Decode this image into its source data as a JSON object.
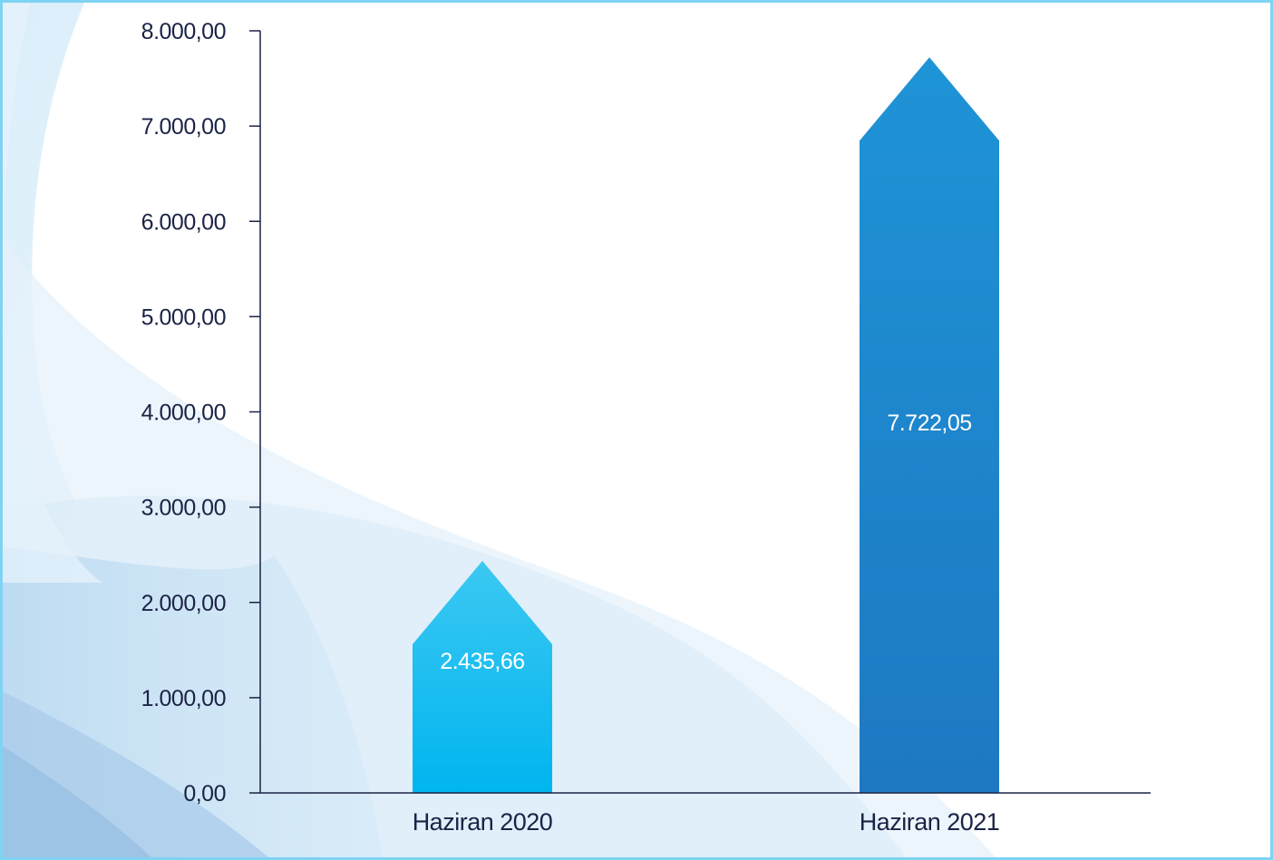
{
  "chart_data": {
    "type": "bar",
    "categories": [
      "Haziran 2020",
      "Haziran 2021"
    ],
    "values": [
      2435.66,
      7722.05
    ],
    "data_labels": [
      "2.435,66",
      "7.722,05"
    ],
    "ylim": [
      0,
      8000
    ],
    "yticks": [
      0,
      1000,
      2000,
      3000,
      4000,
      5000,
      6000,
      7000,
      8000
    ],
    "ytick_labels": [
      "0,00",
      "1.000,00",
      "2.000,00",
      "3.000,00",
      "4.000,00",
      "5.000,00",
      "6.000,00",
      "7.000,00",
      "8.000,00"
    ],
    "title": "",
    "xlabel": "",
    "ylabel": "",
    "grid": false,
    "bar_shape": "arrow-up",
    "colors": {
      "bars": [
        [
          "#3cc8f2",
          "#00b5ef"
        ],
        [
          "#1e94d6",
          "#1e78c2"
        ]
      ],
      "axis": "#1a2345",
      "text": "#1a2345",
      "data_label": "#ffffff",
      "frame_border": "#7fd3f2"
    }
  }
}
